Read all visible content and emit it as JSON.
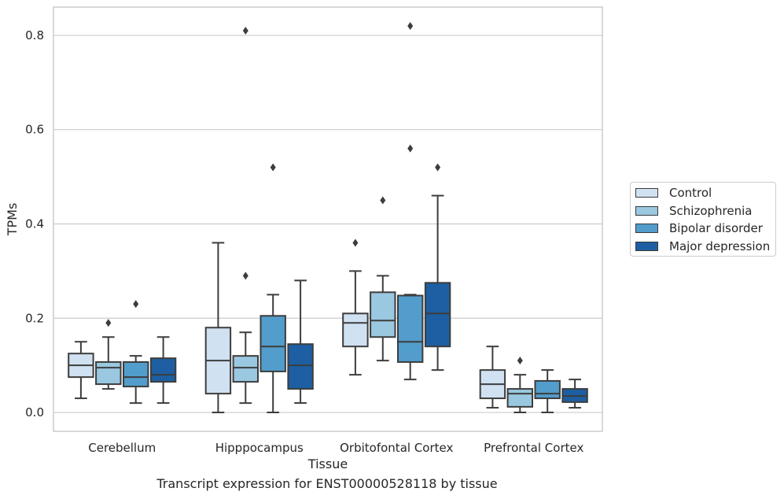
{
  "chart_data": {
    "type": "box",
    "title": "",
    "caption": "Transcript expression for ENST00000528118 by tissue",
    "xlabel": "Tissue",
    "ylabel": "TPMs",
    "ylim": [
      -0.04,
      0.86
    ],
    "yticks": [
      0.0,
      0.2,
      0.4,
      0.6,
      0.8
    ],
    "ytick_labels": [
      "0.0",
      "0.2",
      "0.4",
      "0.6",
      "0.8"
    ],
    "grid": "horizontal",
    "legend_position": "outside-right",
    "categories": [
      "Cerebellum",
      "Hipppocampus",
      "Orbitofontal Cortex",
      "Prefrontal Cortex"
    ],
    "series": [
      {
        "name": "Control",
        "color": "#d0e1f2",
        "boxes": [
          {
            "whisker_low": 0.03,
            "q1": 0.075,
            "median": 0.1,
            "q3": 0.125,
            "whisker_high": 0.15,
            "outliers": []
          },
          {
            "whisker_low": 0.0,
            "q1": 0.04,
            "median": 0.11,
            "q3": 0.18,
            "whisker_high": 0.36,
            "outliers": []
          },
          {
            "whisker_low": 0.08,
            "q1": 0.14,
            "median": 0.19,
            "q3": 0.21,
            "whisker_high": 0.3,
            "outliers": [
              0.36
            ]
          },
          {
            "whisker_low": 0.01,
            "q1": 0.03,
            "median": 0.06,
            "q3": 0.09,
            "whisker_high": 0.14,
            "outliers": []
          }
        ]
      },
      {
        "name": "Schizophrenia",
        "color": "#9ac8e0",
        "boxes": [
          {
            "whisker_low": 0.05,
            "q1": 0.06,
            "median": 0.095,
            "q3": 0.107,
            "whisker_high": 0.16,
            "outliers": [
              0.19
            ]
          },
          {
            "whisker_low": 0.02,
            "q1": 0.065,
            "median": 0.095,
            "q3": 0.12,
            "whisker_high": 0.17,
            "outliers": [
              0.29,
              0.81
            ]
          },
          {
            "whisker_low": 0.11,
            "q1": 0.16,
            "median": 0.195,
            "q3": 0.255,
            "whisker_high": 0.29,
            "outliers": [
              0.45
            ]
          },
          {
            "whisker_low": 0.0,
            "q1": 0.012,
            "median": 0.04,
            "q3": 0.05,
            "whisker_high": 0.08,
            "outliers": [
              0.11
            ]
          }
        ]
      },
      {
        "name": "Bipolar disorder",
        "color": "#529dcc",
        "boxes": [
          {
            "whisker_low": 0.02,
            "q1": 0.055,
            "median": 0.075,
            "q3": 0.107,
            "whisker_high": 0.12,
            "outliers": [
              0.23
            ]
          },
          {
            "whisker_low": 0.0,
            "q1": 0.087,
            "median": 0.14,
            "q3": 0.205,
            "whisker_high": 0.25,
            "outliers": [
              0.52
            ]
          },
          {
            "whisker_low": 0.07,
            "q1": 0.107,
            "median": 0.15,
            "q3": 0.248,
            "whisker_high": 0.25,
            "outliers": [
              0.56,
              0.82
            ]
          },
          {
            "whisker_low": 0.0,
            "q1": 0.03,
            "median": 0.04,
            "q3": 0.067,
            "whisker_high": 0.09,
            "outliers": []
          }
        ]
      },
      {
        "name": "Major depression",
        "color": "#1d5fa2",
        "boxes": [
          {
            "whisker_low": 0.02,
            "q1": 0.065,
            "median": 0.08,
            "q3": 0.115,
            "whisker_high": 0.16,
            "outliers": []
          },
          {
            "whisker_low": 0.02,
            "q1": 0.05,
            "median": 0.1,
            "q3": 0.145,
            "whisker_high": 0.28,
            "outliers": []
          },
          {
            "whisker_low": 0.09,
            "q1": 0.14,
            "median": 0.21,
            "q3": 0.275,
            "whisker_high": 0.46,
            "outliers": [
              0.52
            ]
          },
          {
            "whisker_low": 0.01,
            "q1": 0.022,
            "median": 0.035,
            "q3": 0.05,
            "whisker_high": 0.07,
            "outliers": []
          }
        ]
      }
    ]
  }
}
